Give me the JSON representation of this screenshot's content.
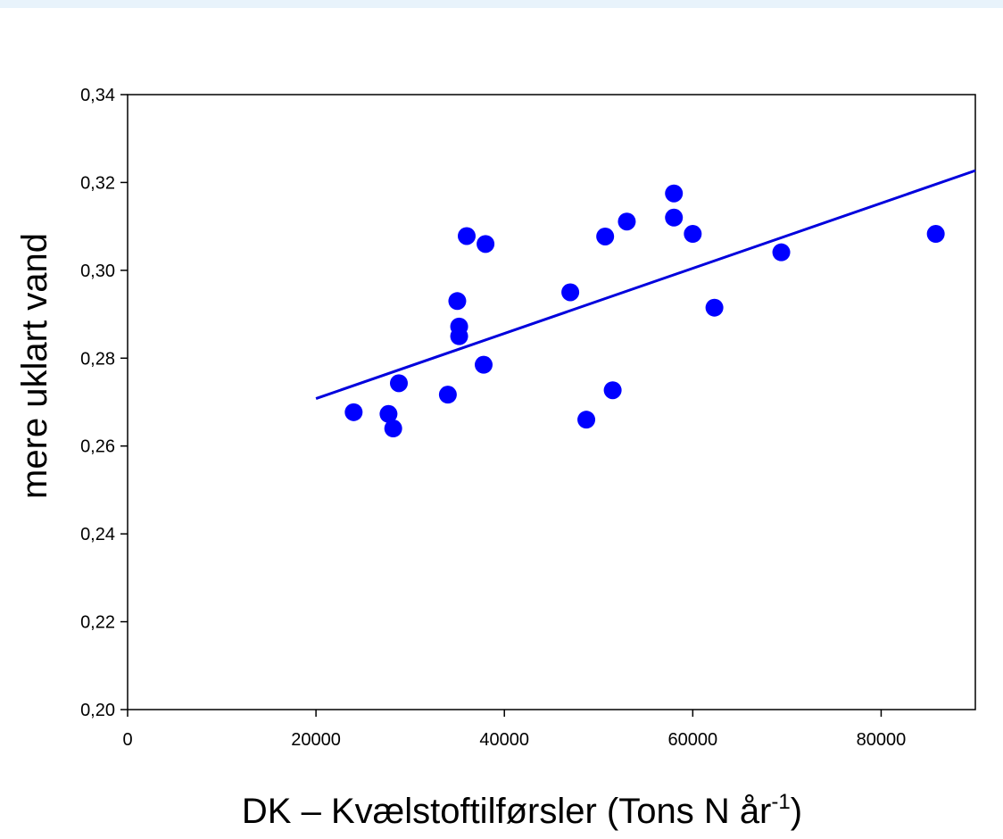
{
  "chart_data": {
    "type": "scatter",
    "title": "",
    "xlabel": "DK – Kvælstoftilførsler (Tons N år",
    "xlabel_superscript": "-1",
    "xlabel_suffix": ")",
    "ylabel": "mere uklart vand",
    "xlim": [
      0,
      90000
    ],
    "ylim": [
      0.2,
      0.34
    ],
    "xticks": [
      0,
      20000,
      40000,
      60000,
      80000
    ],
    "xtick_labels": [
      "0",
      "20000",
      "40000",
      "60000",
      "80000"
    ],
    "yticks": [
      0.2,
      0.22,
      0.24,
      0.26,
      0.28,
      0.3,
      0.32,
      0.34
    ],
    "ytick_labels": [
      "0,20",
      "0,22",
      "0,24",
      "0,26",
      "0,28",
      "0,30",
      "0,32",
      "0,34"
    ],
    "grid": false,
    "marker_color": "#0000ff",
    "line_color": "#0000dd",
    "points": [
      {
        "x": 24000,
        "y": 0.2677
      },
      {
        "x": 27700,
        "y": 0.2673
      },
      {
        "x": 28200,
        "y": 0.264
      },
      {
        "x": 28800,
        "y": 0.2743
      },
      {
        "x": 34000,
        "y": 0.2717
      },
      {
        "x": 35000,
        "y": 0.293
      },
      {
        "x": 35200,
        "y": 0.2872
      },
      {
        "x": 35200,
        "y": 0.285
      },
      {
        "x": 36000,
        "y": 0.3078
      },
      {
        "x": 37800,
        "y": 0.2785
      },
      {
        "x": 38000,
        "y": 0.306
      },
      {
        "x": 47000,
        "y": 0.295
      },
      {
        "x": 48700,
        "y": 0.266
      },
      {
        "x": 50700,
        "y": 0.3077
      },
      {
        "x": 51500,
        "y": 0.2727
      },
      {
        "x": 53000,
        "y": 0.3111
      },
      {
        "x": 58000,
        "y": 0.3175
      },
      {
        "x": 58000,
        "y": 0.312
      },
      {
        "x": 60000,
        "y": 0.3083
      },
      {
        "x": 62300,
        "y": 0.2915
      },
      {
        "x": 69400,
        "y": 0.3041
      },
      {
        "x": 85800,
        "y": 0.3083
      }
    ],
    "trendline": {
      "x": [
        20000,
        90000
      ],
      "y": [
        0.2708,
        0.3227
      ]
    }
  }
}
